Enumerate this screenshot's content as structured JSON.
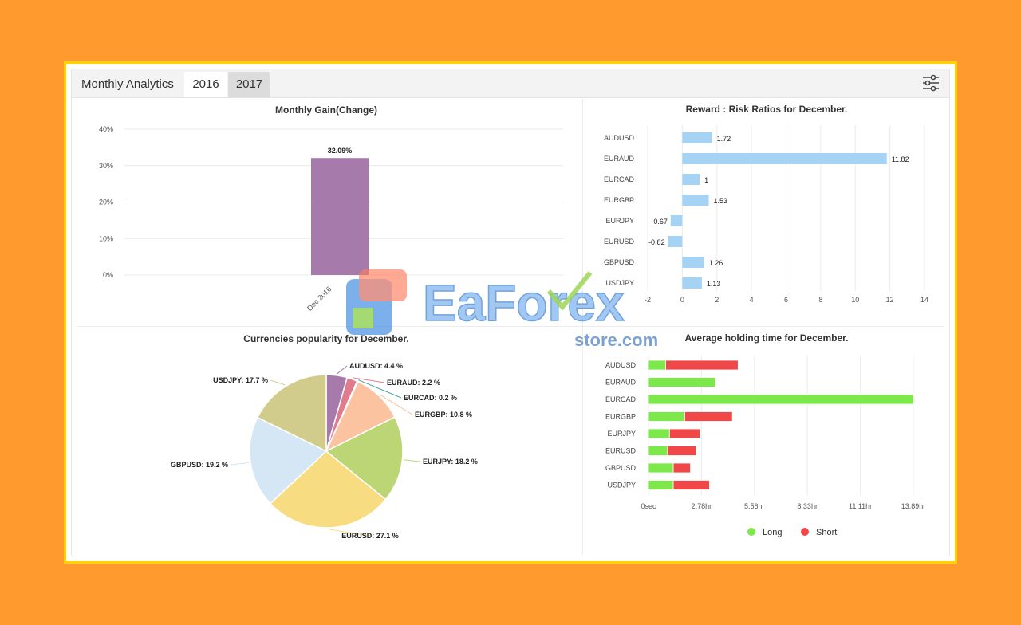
{
  "header": {
    "title": "Monthly Analytics",
    "tabs": [
      {
        "label": "2016",
        "active": true
      },
      {
        "label": "2017",
        "active": false
      }
    ],
    "settings_icon": "sliders-icon"
  },
  "watermark": {
    "brand": "EaForex",
    "sub": "store.com"
  },
  "charts": {
    "gain": {
      "chart_data": {
        "type": "bar",
        "title": "Monthly Gain(Change)",
        "categories": [
          "Dec 2016"
        ],
        "values": [
          32.09
        ],
        "value_labels": [
          "32.09%"
        ],
        "yticks": [
          "0%",
          "10%",
          "20%",
          "30%",
          "40%"
        ],
        "ylim": [
          0,
          40
        ],
        "color": "#a67bab"
      }
    },
    "reward": {
      "chart_data": {
        "type": "bar",
        "orientation": "horizontal",
        "title": "Reward : Risk Ratios for December.",
        "categories": [
          "AUDUSD",
          "EURAUD",
          "EURCAD",
          "EURGBP",
          "EURJPY",
          "EURUSD",
          "GBPUSD",
          "USDJPY"
        ],
        "values": [
          1.72,
          11.82,
          1,
          1.53,
          -0.67,
          -0.82,
          1.26,
          1.13
        ],
        "value_labels": [
          "1.72",
          "11.82",
          "1",
          "1.53",
          "-0.67",
          "-0.82",
          "1.26",
          "1.13"
        ],
        "xticks": [
          "-2",
          "0",
          "2",
          "4",
          "6",
          "8",
          "10",
          "12",
          "14"
        ],
        "xlim": [
          -2,
          14
        ],
        "color": "#a6d3f3"
      }
    },
    "popularity": {
      "chart_data": {
        "type": "pie",
        "title": "Currencies popularity for December.",
        "slices": [
          {
            "label": "AUDUSD: 4.4 %",
            "value": 4.4,
            "color": "#a67bab"
          },
          {
            "label": "EURAUD: 2.2 %",
            "value": 2.2,
            "color": "#e07b8c"
          },
          {
            "label": "EURCAD: 0.2 %",
            "value": 0.2,
            "color": "#4aa3a3"
          },
          {
            "label": "EURGBP: 10.8 %",
            "value": 10.8,
            "color": "#fbc3a0"
          },
          {
            "label": "EURJPY: 18.2 %",
            "value": 18.2,
            "color": "#bcd676"
          },
          {
            "label": "EURUSD: 27.1 %",
            "value": 27.1,
            "color": "#f7dc82"
          },
          {
            "label": "GBPUSD: 19.2 %",
            "value": 19.2,
            "color": "#d5e6f5"
          },
          {
            "label": "USDJPY: 17.7 %",
            "value": 17.7,
            "color": "#d1cc8c"
          }
        ]
      }
    },
    "holding": {
      "chart_data": {
        "type": "bar",
        "orientation": "horizontal",
        "stacked": true,
        "title": "Average holding time for December.",
        "categories": [
          "AUDUSD",
          "EURAUD",
          "EURCAD",
          "EURGBP",
          "EURJPY",
          "EURUSD",
          "GBPUSD",
          "USDJPY"
        ],
        "xticks": [
          "0sec",
          "2.78hr",
          "5.56hr",
          "8.33hr",
          "11.11hr",
          "13.89hr"
        ],
        "xlim_hr": [
          0,
          13.89
        ],
        "series": [
          {
            "name": "Long",
            "color": "#7ce84a",
            "values": [
              0.9,
              3.5,
              13.9,
              1.9,
              1.1,
              1.0,
              1.3,
              1.3
            ]
          },
          {
            "name": "Short",
            "color": "#f04848",
            "values": [
              3.8,
              0,
              0,
              2.5,
              1.6,
              1.5,
              0.9,
              1.9
            ]
          }
        ],
        "legend": "bottom"
      }
    }
  }
}
